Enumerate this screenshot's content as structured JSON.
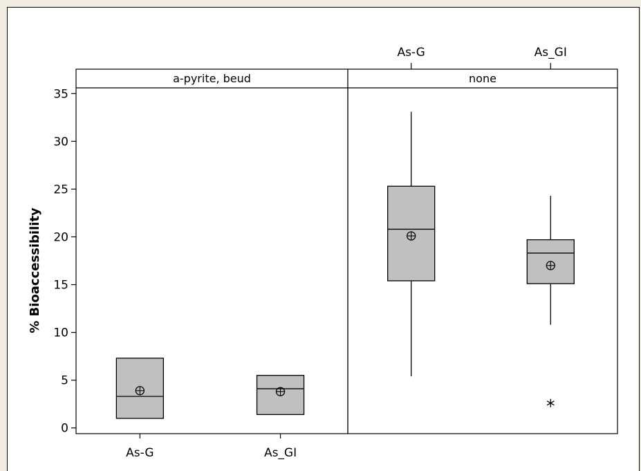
{
  "chart_data": {
    "type": "boxplot",
    "ylabel": "% Bioaccessibility",
    "ylim": [
      -0.6,
      35.6
    ],
    "yticks": [
      0,
      5,
      10,
      15,
      20,
      25,
      30,
      35
    ],
    "categories": [
      "As-G",
      "As_GI"
    ],
    "panels": [
      {
        "label": "a-pyrite, beud",
        "boxes": [
          {
            "category": "As-G",
            "min": 1.0,
            "q1": 1.0,
            "median": 3.3,
            "q3": 7.3,
            "max": 7.3,
            "mean": 3.9,
            "outliers": []
          },
          {
            "category": "As_GI",
            "min": 1.4,
            "q1": 1.4,
            "median": 4.1,
            "q3": 5.5,
            "max": 5.5,
            "mean": 3.8,
            "outliers": []
          }
        ]
      },
      {
        "label": "none",
        "boxes": [
          {
            "category": "As-G",
            "min": 5.4,
            "q1": 15.4,
            "median": 20.8,
            "q3": 25.3,
            "max": 33.1,
            "mean": 20.1,
            "outliers": []
          },
          {
            "category": "As_GI",
            "min": 10.8,
            "q1": 15.1,
            "median": 18.3,
            "q3": 19.7,
            "max": 24.3,
            "mean": 17.0,
            "outliers": [
              2.6
            ]
          }
        ]
      }
    ]
  }
}
